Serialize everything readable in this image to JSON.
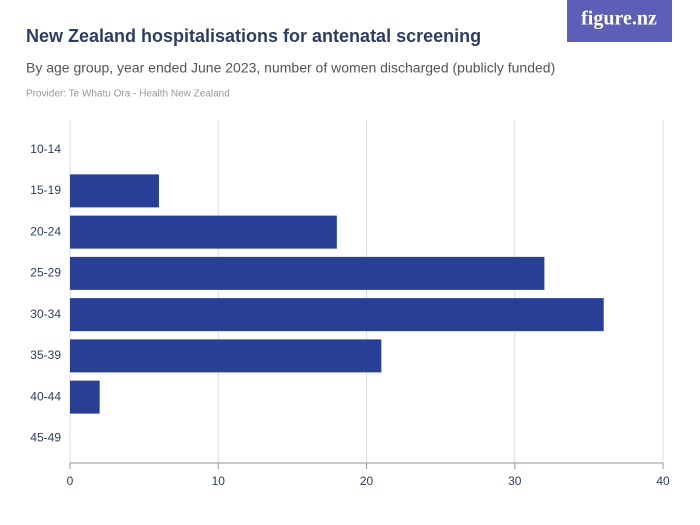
{
  "chart_data": {
    "type": "bar",
    "orientation": "horizontal",
    "title": "New Zealand hospitalisations for antenatal screening",
    "subtitle": "By age group, year ended June 2023, number of women discharged (publicly funded)",
    "provider": "Provider: Te Whatu Ora - Health New Zealand",
    "logo": "figure.nz",
    "categories": [
      "10-14",
      "15-19",
      "20-24",
      "25-29",
      "30-34",
      "35-39",
      "40-44",
      "45-49"
    ],
    "values": [
      0,
      6,
      18,
      32,
      36,
      21,
      2,
      0
    ],
    "color": "#283f98",
    "xlim": [
      0,
      40
    ],
    "xticks": [
      0,
      10,
      20,
      30,
      40
    ],
    "grid": true
  }
}
